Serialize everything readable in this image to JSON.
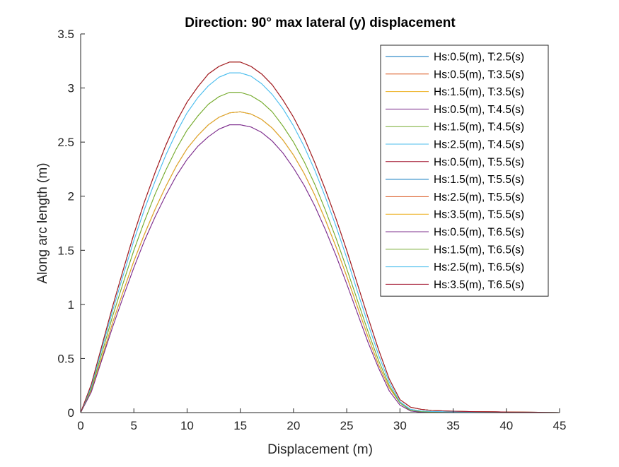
{
  "chart_data": {
    "type": "line",
    "title": "Direction: 90° max lateral (y) displacement",
    "xlabel": "Displacement (m)",
    "ylabel": "Along arc length (m)",
    "xlim": [
      0,
      45
    ],
    "ylim": [
      0,
      3.5
    ],
    "xticks": [
      0,
      5,
      10,
      15,
      20,
      25,
      30,
      35,
      40,
      45
    ],
    "xtick_labels": [
      "0",
      "5",
      "10",
      "15",
      "20",
      "25",
      "30",
      "35",
      "40",
      "45"
    ],
    "yticks": [
      0,
      0.5,
      1,
      1.5,
      2,
      2.5,
      3,
      3.5
    ],
    "ytick_labels": [
      "0",
      "0.5",
      "1",
      "1.5",
      "2",
      "2.5",
      "3",
      "3.5"
    ],
    "grid": false,
    "legend_position": "top-right",
    "x": [
      0,
      1,
      2,
      3,
      4,
      5,
      6,
      7,
      8,
      9,
      10,
      11,
      12,
      13,
      14,
      15,
      16,
      17,
      18,
      19,
      20,
      21,
      22,
      23,
      24,
      25,
      26,
      27,
      28,
      29,
      30,
      31,
      32,
      33,
      34,
      35,
      36,
      37,
      38,
      39,
      40,
      41,
      42,
      43,
      44,
      45
    ],
    "series": [
      {
        "name": "Hs:0.5(m), T:2.5(s)",
        "color": "#0072BD",
        "values": [
          0,
          0.2,
          0.51,
          0.83,
          1.12,
          1.4,
          1.65,
          1.88,
          2.09,
          2.28,
          2.44,
          2.56,
          2.66,
          2.73,
          2.77,
          2.78,
          2.76,
          2.71,
          2.63,
          2.52,
          2.38,
          2.21,
          2.01,
          1.78,
          1.53,
          1.26,
          0.98,
          0.7,
          0.44,
          0.23,
          0.09,
          0.02,
          0.005,
          0.003,
          0.002,
          0.001,
          0.001,
          0.001,
          0.001,
          0.001,
          0.001,
          0.001,
          0.001,
          0.001,
          0.001,
          0
        ]
      },
      {
        "name": "Hs:0.5(m), T:3.5(s)",
        "color": "#D95319",
        "values": [
          0,
          0.2,
          0.51,
          0.83,
          1.12,
          1.4,
          1.65,
          1.88,
          2.09,
          2.28,
          2.44,
          2.56,
          2.66,
          2.73,
          2.77,
          2.78,
          2.76,
          2.71,
          2.63,
          2.52,
          2.38,
          2.21,
          2.01,
          1.78,
          1.53,
          1.26,
          0.98,
          0.7,
          0.44,
          0.23,
          0.09,
          0.02,
          0.005,
          0.003,
          0.002,
          0.001,
          0.001,
          0.001,
          0.001,
          0.001,
          0.001,
          0.001,
          0.001,
          0.001,
          0.001,
          0
        ]
      },
      {
        "name": "Hs:1.5(m), T:3.5(s)",
        "color": "#EDB120",
        "values": [
          0,
          0.2,
          0.51,
          0.83,
          1.12,
          1.4,
          1.65,
          1.88,
          2.09,
          2.28,
          2.44,
          2.56,
          2.66,
          2.73,
          2.77,
          2.78,
          2.76,
          2.71,
          2.63,
          2.52,
          2.38,
          2.21,
          2.01,
          1.78,
          1.53,
          1.26,
          0.98,
          0.7,
          0.44,
          0.23,
          0.09,
          0.02,
          0.005,
          0.003,
          0.002,
          0.001,
          0.001,
          0.001,
          0.001,
          0.001,
          0.001,
          0.001,
          0.001,
          0.001,
          0.001,
          0
        ]
      },
      {
        "name": "Hs:0.5(m), T:4.5(s)",
        "color": "#7E2F8E",
        "values": [
          0,
          0.19,
          0.49,
          0.79,
          1.07,
          1.34,
          1.59,
          1.81,
          2.01,
          2.19,
          2.34,
          2.46,
          2.55,
          2.62,
          2.66,
          2.66,
          2.64,
          2.59,
          2.51,
          2.4,
          2.26,
          2.1,
          1.91,
          1.69,
          1.45,
          1.19,
          0.92,
          0.65,
          0.41,
          0.2,
          0.07,
          0.015,
          0.004,
          0.003,
          0.002,
          0.001,
          0.001,
          0.001,
          0.001,
          0.001,
          0.001,
          0.001,
          0.001,
          0.001,
          0.001,
          0
        ]
      },
      {
        "name": "Hs:1.5(m), T:4.5(s)",
        "color": "#77AC30",
        "values": [
          0,
          0.22,
          0.55,
          0.89,
          1.2,
          1.5,
          1.77,
          2.02,
          2.24,
          2.44,
          2.61,
          2.74,
          2.85,
          2.92,
          2.96,
          2.96,
          2.93,
          2.87,
          2.78,
          2.65,
          2.5,
          2.32,
          2.11,
          1.87,
          1.61,
          1.33,
          1.04,
          0.75,
          0.48,
          0.25,
          0.09,
          0.02,
          0.01,
          0.005,
          0.004,
          0.003,
          0.003,
          0.002,
          0.002,
          0.002,
          0.002,
          0.002,
          0.001,
          0.001,
          0.001,
          0
        ]
      },
      {
        "name": "Hs:2.5(m), T:4.5(s)",
        "color": "#4DBEEE",
        "values": [
          0,
          0.24,
          0.59,
          0.94,
          1.27,
          1.59,
          1.88,
          2.14,
          2.38,
          2.59,
          2.77,
          2.91,
          3.02,
          3.1,
          3.14,
          3.14,
          3.11,
          3.04,
          2.94,
          2.81,
          2.65,
          2.46,
          2.24,
          1.99,
          1.72,
          1.43,
          1.12,
          0.82,
          0.53,
          0.28,
          0.1,
          0.03,
          0.015,
          0.01,
          0.008,
          0.006,
          0.005,
          0.004,
          0.004,
          0.003,
          0.003,
          0.003,
          0.002,
          0.002,
          0.001,
          0
        ]
      },
      {
        "name": "Hs:0.5(m), T:5.5(s)",
        "color": "#A2142F",
        "values": [
          0,
          0.26,
          0.62,
          0.98,
          1.32,
          1.65,
          1.95,
          2.22,
          2.47,
          2.69,
          2.87,
          3.01,
          3.13,
          3.2,
          3.24,
          3.24,
          3.2,
          3.13,
          3.03,
          2.89,
          2.73,
          2.54,
          2.31,
          2.06,
          1.79,
          1.5,
          1.19,
          0.88,
          0.58,
          0.31,
          0.12,
          0.05,
          0.03,
          0.02,
          0.016,
          0.013,
          0.011,
          0.009,
          0.008,
          0.007,
          0.006,
          0.005,
          0.004,
          0.003,
          0.002,
          0
        ]
      },
      {
        "name": "Hs:1.5(m), T:5.5(s)",
        "color": "#0072BD",
        "values": [
          0,
          0.26,
          0.62,
          0.98,
          1.32,
          1.65,
          1.95,
          2.22,
          2.47,
          2.69,
          2.87,
          3.01,
          3.13,
          3.2,
          3.24,
          3.24,
          3.2,
          3.13,
          3.03,
          2.89,
          2.73,
          2.54,
          2.31,
          2.06,
          1.79,
          1.5,
          1.19,
          0.88,
          0.58,
          0.31,
          0.12,
          0.05,
          0.03,
          0.02,
          0.016,
          0.013,
          0.011,
          0.009,
          0.008,
          0.007,
          0.006,
          0.005,
          0.004,
          0.003,
          0.002,
          0
        ]
      },
      {
        "name": "Hs:2.5(m), T:5.5(s)",
        "color": "#D95319",
        "values": [
          0,
          0.26,
          0.62,
          0.98,
          1.32,
          1.65,
          1.95,
          2.22,
          2.47,
          2.69,
          2.87,
          3.01,
          3.13,
          3.2,
          3.24,
          3.24,
          3.2,
          3.13,
          3.03,
          2.89,
          2.73,
          2.54,
          2.31,
          2.06,
          1.79,
          1.5,
          1.19,
          0.88,
          0.58,
          0.31,
          0.12,
          0.05,
          0.03,
          0.02,
          0.016,
          0.013,
          0.011,
          0.009,
          0.008,
          0.007,
          0.006,
          0.005,
          0.004,
          0.003,
          0.002,
          0
        ]
      },
      {
        "name": "Hs:3.5(m), T:5.5(s)",
        "color": "#EDB120",
        "values": [
          0,
          0.26,
          0.62,
          0.98,
          1.32,
          1.65,
          1.95,
          2.22,
          2.47,
          2.69,
          2.87,
          3.01,
          3.13,
          3.2,
          3.24,
          3.24,
          3.2,
          3.13,
          3.03,
          2.89,
          2.73,
          2.54,
          2.31,
          2.06,
          1.79,
          1.5,
          1.19,
          0.88,
          0.58,
          0.31,
          0.12,
          0.05,
          0.03,
          0.02,
          0.016,
          0.013,
          0.011,
          0.009,
          0.008,
          0.007,
          0.006,
          0.005,
          0.004,
          0.003,
          0.002,
          0
        ]
      },
      {
        "name": "Hs:0.5(m), T:6.5(s)",
        "color": "#7E2F8E",
        "values": [
          0,
          0.19,
          0.49,
          0.79,
          1.07,
          1.34,
          1.59,
          1.81,
          2.01,
          2.19,
          2.34,
          2.46,
          2.55,
          2.62,
          2.66,
          2.66,
          2.64,
          2.59,
          2.51,
          2.4,
          2.26,
          2.1,
          1.91,
          1.69,
          1.45,
          1.19,
          0.92,
          0.65,
          0.41,
          0.2,
          0.07,
          0.015,
          0.004,
          0.003,
          0.002,
          0.001,
          0.001,
          0.001,
          0.001,
          0.001,
          0.001,
          0.001,
          0.001,
          0.001,
          0.001,
          0
        ]
      },
      {
        "name": "Hs:1.5(m), T:6.5(s)",
        "color": "#77AC30",
        "values": [
          0,
          0.22,
          0.55,
          0.89,
          1.2,
          1.5,
          1.77,
          2.02,
          2.24,
          2.44,
          2.61,
          2.74,
          2.85,
          2.92,
          2.96,
          2.96,
          2.93,
          2.87,
          2.78,
          2.65,
          2.5,
          2.32,
          2.11,
          1.87,
          1.61,
          1.33,
          1.04,
          0.75,
          0.48,
          0.25,
          0.09,
          0.02,
          0.01,
          0.005,
          0.004,
          0.003,
          0.003,
          0.002,
          0.002,
          0.002,
          0.002,
          0.002,
          0.001,
          0.001,
          0.001,
          0
        ]
      },
      {
        "name": "Hs:2.5(m), T:6.5(s)",
        "color": "#4DBEEE",
        "values": [
          0,
          0.24,
          0.59,
          0.94,
          1.27,
          1.59,
          1.88,
          2.14,
          2.38,
          2.59,
          2.77,
          2.91,
          3.02,
          3.1,
          3.14,
          3.14,
          3.11,
          3.04,
          2.94,
          2.81,
          2.65,
          2.46,
          2.24,
          1.99,
          1.72,
          1.43,
          1.12,
          0.82,
          0.53,
          0.28,
          0.1,
          0.03,
          0.015,
          0.01,
          0.008,
          0.006,
          0.005,
          0.004,
          0.004,
          0.003,
          0.003,
          0.003,
          0.002,
          0.002,
          0.001,
          0
        ]
      },
      {
        "name": "Hs:3.5(m), T:6.5(s)",
        "color": "#A2142F",
        "values": [
          0,
          0.26,
          0.62,
          0.98,
          1.32,
          1.65,
          1.95,
          2.22,
          2.47,
          2.69,
          2.87,
          3.01,
          3.13,
          3.2,
          3.24,
          3.24,
          3.2,
          3.13,
          3.03,
          2.89,
          2.73,
          2.54,
          2.31,
          2.06,
          1.79,
          1.5,
          1.19,
          0.88,
          0.58,
          0.31,
          0.12,
          0.05,
          0.03,
          0.02,
          0.016,
          0.013,
          0.011,
          0.009,
          0.008,
          0.007,
          0.006,
          0.005,
          0.004,
          0.003,
          0.002,
          0
        ]
      }
    ]
  }
}
